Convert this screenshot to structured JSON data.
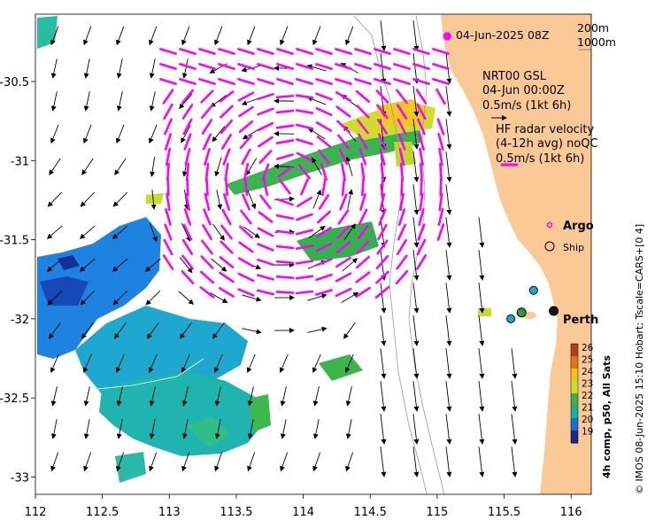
{
  "map": {
    "timestamp": "04-Jun-2025 08Z",
    "isobaths": [
      "200m",
      "1000m"
    ],
    "model_label": [
      "NRT00 GSL",
      "04-Jun 00:00Z",
      "0.5m/s (1kt 6h)"
    ],
    "radar_label": [
      "HF radar velocity",
      "(4-12h avg) noQC",
      "0.5m/s (1kt 6h)"
    ],
    "legend": {
      "argo": "Argo",
      "ship": "Ship"
    },
    "city": "Perth",
    "colorbar": {
      "title": "4h comp, p50, All Sats",
      "ticks": [
        "26",
        "25",
        "24",
        "23",
        "22",
        "21",
        "20",
        "19"
      ],
      "colors": [
        "#b0401a",
        "#e07818",
        "#f2c21a",
        "#c8e028",
        "#40b048",
        "#18b0a0",
        "#1470d8",
        "#182888"
      ]
    },
    "credit": "© IMOS 08-Jun-2025 15:10 Hobart; Tscale=CARS+[0 4]",
    "x_ticks": [
      "112",
      "112.5",
      "113",
      "113.5",
      "114",
      "114.5",
      "115",
      "115.5",
      "116"
    ],
    "y_ticks": [
      "-30.5",
      "-31",
      "-31.5",
      "-32",
      "-32.5",
      "-33"
    ],
    "colors": {
      "land": "#fbc995",
      "radar": "#ff00ff"
    }
  },
  "chart_data": {
    "type": "map",
    "x_range": [
      112,
      116.2
    ],
    "y_range": [
      -33.1,
      -30
    ],
    "markers": [
      {
        "type": "argo",
        "lon": 115.72,
        "lat": -31.82
      },
      {
        "type": "argo",
        "lon": 115.55,
        "lat": -32.0
      },
      {
        "type": "ship",
        "lon": 115.63,
        "lat": -31.96
      },
      {
        "type": "ship",
        "lon": 115.87,
        "lat": -31.95
      }
    ]
  }
}
